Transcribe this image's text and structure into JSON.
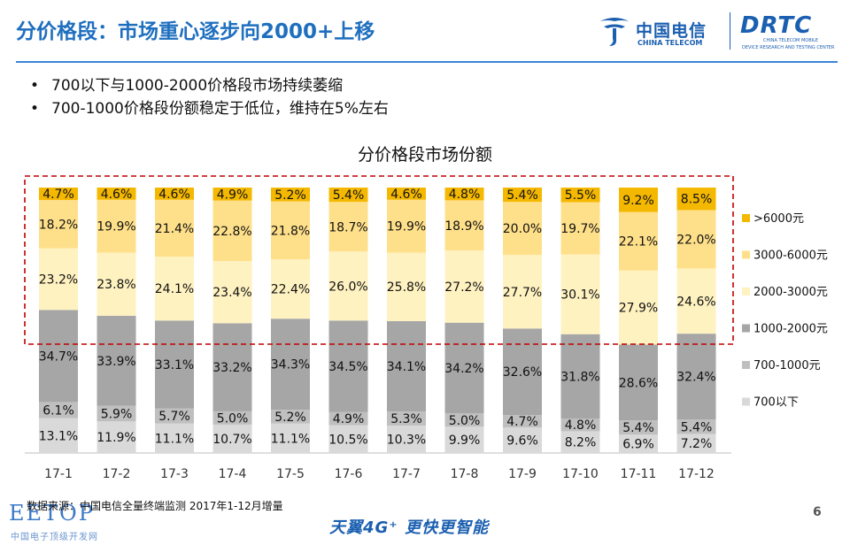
{
  "header": {
    "title": "分价格段：市场重心逐步向2000+上移"
  },
  "logo": {
    "ct_cn": "中国电信",
    "ct_en": "CHINA TELECOM",
    "rtc": "DRTC",
    "rtc_sub1": "CHINA TELECOM MOBILE",
    "rtc_sub2": "DEVICE RESEARCH AND TESTING CENTER"
  },
  "bullets": [
    "700以下与1000-2000价格段市场持续萎缩",
    "700-1000价格段份额稳定于低位，维持在5%左右"
  ],
  "chart_data": {
    "type": "bar",
    "stacked": true,
    "title": "分价格段市场份额",
    "categories": [
      "17-1",
      "17-2",
      "17-3",
      "17-4",
      "17-5",
      "17-6",
      "17-7",
      "17-8",
      "17-9",
      "17-10",
      "17-11",
      "17-12"
    ],
    "series": [
      {
        "name": "700以下",
        "color": "#d9d9d9",
        "values": [
          13.1,
          11.9,
          11.1,
          10.7,
          11.1,
          10.5,
          10.3,
          9.9,
          9.6,
          8.2,
          6.9,
          7.2
        ]
      },
      {
        "name": "700-1000元",
        "color": "#bfbfbf",
        "values": [
          6.1,
          5.9,
          5.7,
          5.0,
          5.2,
          4.9,
          5.3,
          5.0,
          4.7,
          4.8,
          5.4,
          5.4
        ]
      },
      {
        "name": "1000-2000元",
        "color": "#a6a6a6",
        "values": [
          34.7,
          33.9,
          33.1,
          33.2,
          34.3,
          34.5,
          34.1,
          34.2,
          32.6,
          31.8,
          28.6,
          32.4
        ]
      },
      {
        "name": "2000-3000元",
        "color": "#fff2c1",
        "values": [
          23.2,
          23.8,
          24.1,
          23.4,
          22.4,
          26.0,
          25.8,
          27.2,
          27.7,
          30.1,
          27.9,
          24.6
        ]
      },
      {
        "name": "3000-6000元",
        "color": "#ffe08a",
        "values": [
          18.2,
          19.9,
          21.4,
          22.8,
          21.8,
          18.7,
          19.9,
          18.9,
          20.0,
          19.7,
          22.1,
          22.0
        ]
      },
      {
        "name": ">6000元",
        "color": "#f5b800",
        "values": [
          4.7,
          4.6,
          4.6,
          4.9,
          5.2,
          5.4,
          4.6,
          4.8,
          5.4,
          5.5,
          9.2,
          8.5
        ]
      }
    ],
    "labels_suffix": "%",
    "legend_position": "right",
    "highlight": {
      "type": "dashed-box",
      "color": "#c00000",
      "covers": [
        "2000-3000元",
        "3000-6000元",
        ">6000元"
      ]
    }
  },
  "footer": {
    "source": "数据来源：中国电信全量终端监测 2017年1-12月增量",
    "page": "6",
    "slogan": "天翼4G⁺ 更快更智能",
    "watermark": "EETOP",
    "watermark_sub": "中国电子顶级开发网"
  }
}
